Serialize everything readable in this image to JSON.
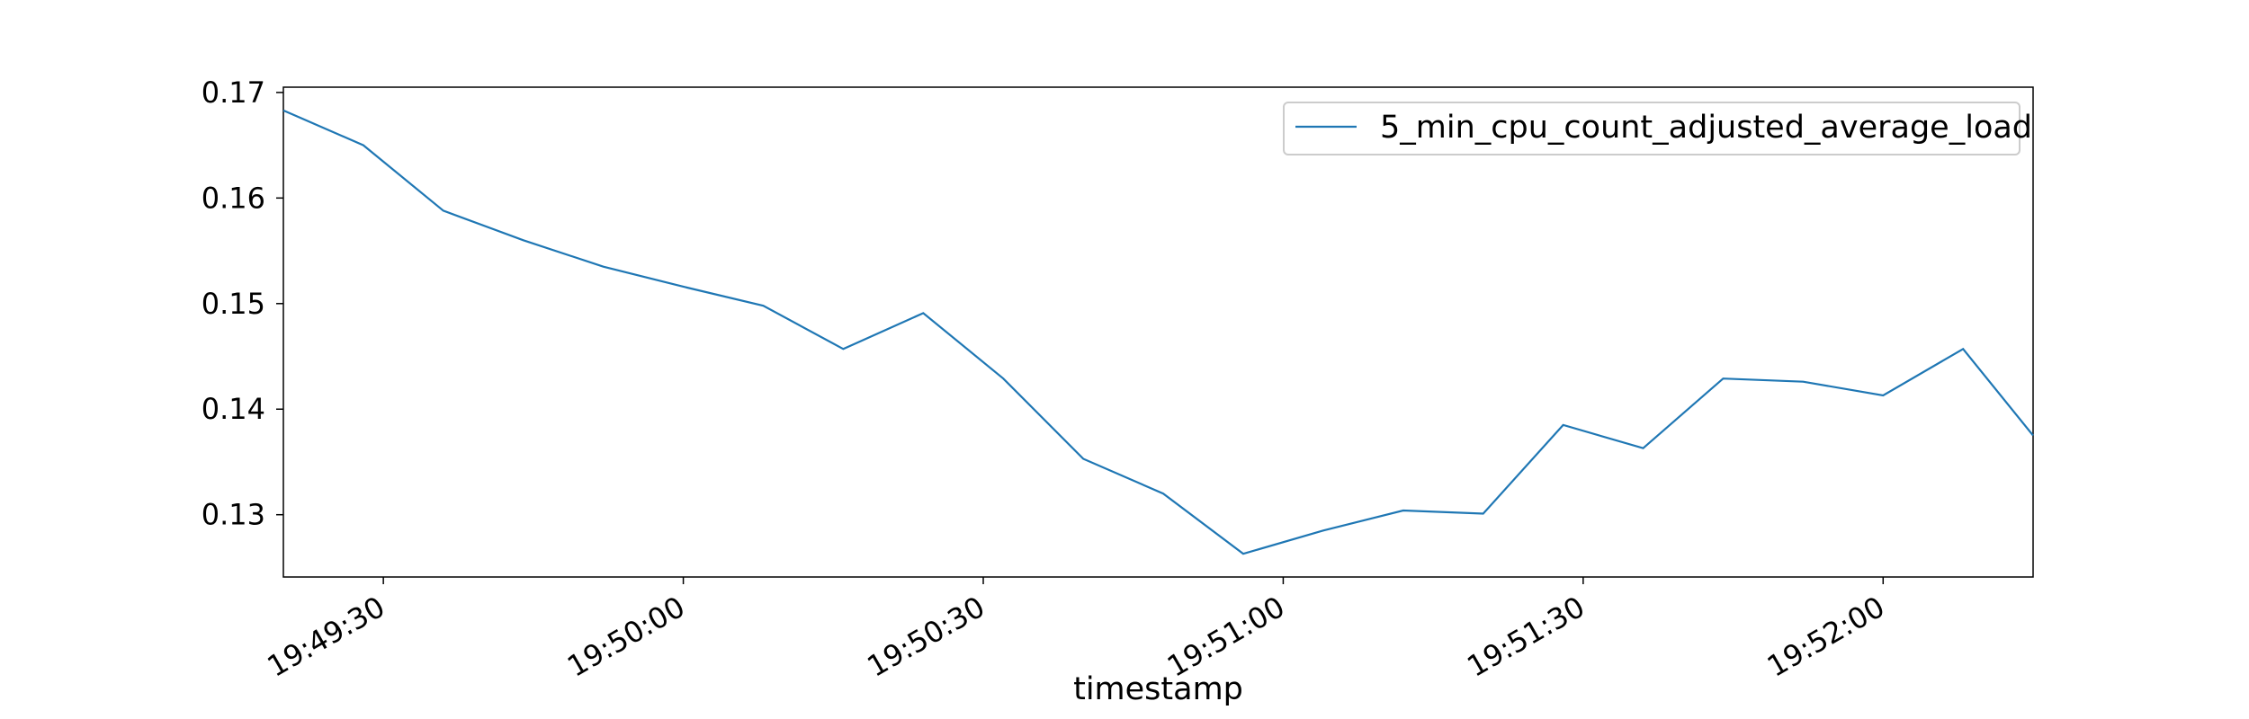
{
  "chart_data": {
    "type": "line",
    "xlabel": "timestamp",
    "ylabel": "",
    "legend_position": "top-right",
    "grid": false,
    "x_ticks": [
      "19:49:30",
      "19:50:00",
      "19:50:30",
      "19:51:00",
      "19:51:30",
      "19:52:00"
    ],
    "y_ticks": [
      "0.13",
      "0.14",
      "0.15",
      "0.16",
      "0.17"
    ],
    "xlim": [
      "19:49:20",
      "19:52:15"
    ],
    "ylim": [
      0.1241,
      0.1705
    ],
    "series": [
      {
        "name": "5_min_cpu_count_adjusted_average_load",
        "color": "#1f77b4",
        "x": [
          "19:49:20",
          "19:49:28",
          "19:49:36",
          "19:49:44",
          "19:49:52",
          "19:50:00",
          "19:50:08",
          "19:50:16",
          "19:50:24",
          "19:50:32",
          "19:50:40",
          "19:50:48",
          "19:50:56",
          "19:51:04",
          "19:51:12",
          "19:51:20",
          "19:51:28",
          "19:51:36",
          "19:51:44",
          "19:51:52",
          "19:52:00",
          "19:52:08",
          "19:52:15"
        ],
        "y": [
          0.1683,
          0.165,
          0.1588,
          0.156,
          0.1535,
          0.1516,
          0.1498,
          0.1457,
          0.1491,
          0.1429,
          0.1353,
          0.132,
          0.1263,
          0.1285,
          0.1304,
          0.1301,
          0.1385,
          0.1363,
          0.1429,
          0.1426,
          0.1413,
          0.1457,
          0.1375
        ]
      }
    ]
  }
}
